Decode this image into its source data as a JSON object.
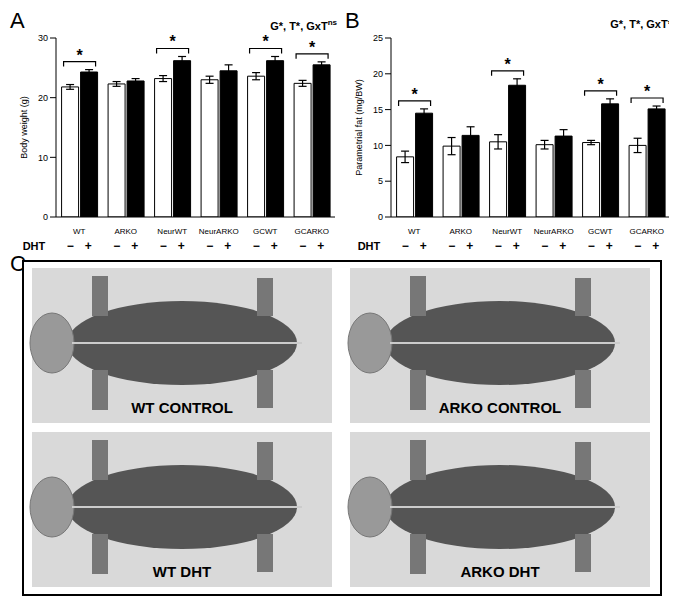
{
  "chart_data": [
    {
      "type": "bar",
      "title": "A",
      "annotation": "G*, T*, GxT",
      "annotation_sup": "ns",
      "x_label": "DHT",
      "y_label": "Body weight (g)",
      "categories": [
        "WT",
        "ARKO",
        "NeurWT",
        "NeurARKO",
        "GCWT",
        "GCARKO"
      ],
      "series": [
        {
          "name": "−",
          "color": "#ffffff",
          "values": [
            21.8,
            22.3,
            23.2,
            23.0,
            23.6,
            22.4
          ],
          "errors": [
            0.4,
            0.4,
            0.5,
            0.6,
            0.6,
            0.5
          ]
        },
        {
          "name": "+",
          "color": "#000000",
          "values": [
            24.3,
            22.8,
            26.2,
            24.5,
            26.2,
            25.5
          ],
          "errors": [
            0.4,
            0.4,
            0.7,
            1.0,
            0.7,
            0.5
          ]
        }
      ],
      "significance": [
        "*",
        null,
        "*",
        null,
        "*",
        "*"
      ],
      "ylim": [
        0,
        30
      ],
      "yticks": [
        0,
        10,
        20,
        30
      ]
    },
    {
      "type": "bar",
      "title": "B",
      "annotation": "G*, T*, GxT*",
      "annotation_sup": "",
      "x_label": "DHT",
      "y_label": "Parametrial fat (mg/BW)",
      "categories": [
        "WT",
        "ARKO",
        "NeurWT",
        "NeurARKO",
        "GCWT",
        "GCARKO"
      ],
      "series": [
        {
          "name": "−",
          "color": "#ffffff",
          "values": [
            8.4,
            9.9,
            10.5,
            10.1,
            10.4,
            10.0
          ],
          "errors": [
            0.8,
            1.2,
            1.0,
            0.6,
            0.3,
            1.0
          ]
        },
        {
          "name": "+",
          "color": "#000000",
          "values": [
            14.5,
            11.4,
            18.4,
            11.3,
            15.8,
            15.1
          ],
          "errors": [
            0.6,
            1.2,
            0.9,
            0.9,
            0.7,
            0.4
          ]
        }
      ],
      "significance": [
        "*",
        null,
        "*",
        null,
        "*",
        "*"
      ],
      "ylim": [
        0,
        25
      ],
      "yticks": [
        0,
        5,
        10,
        15,
        20,
        25
      ]
    }
  ],
  "panel_C": {
    "title": "C",
    "images": [
      "WT CONTROL",
      "ARKO CONTROL",
      "WT DHT",
      "ARKO DHT"
    ]
  }
}
